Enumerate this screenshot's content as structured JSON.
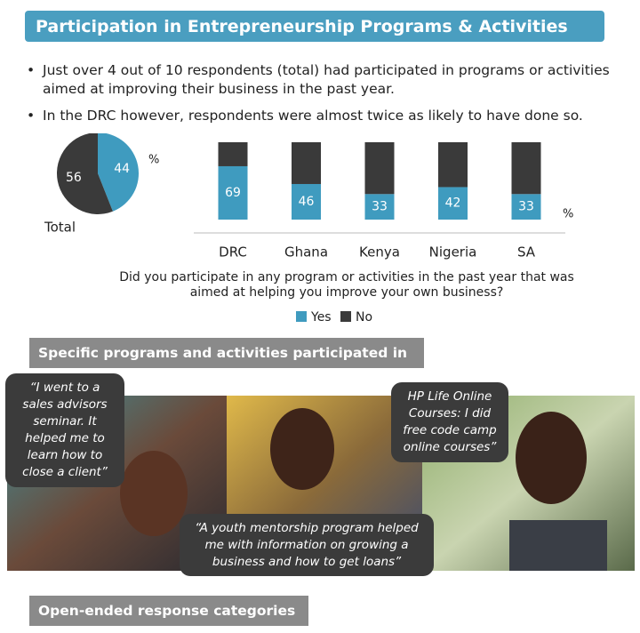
{
  "header": {
    "title": "Participation in Entrepreneurship Programs & Activities"
  },
  "bullets": [
    "Just over 4 out of 10 respondents (total) had participated in programs or activities aimed at improving their business in the past year.",
    "In the DRC however, respondents were almost twice as likely to have done so."
  ],
  "chart_data": [
    {
      "type": "pie",
      "label": "Total",
      "unit": "%",
      "categories": [
        "Yes",
        "No"
      ],
      "values": [
        44,
        56
      ],
      "colors": [
        "#3f9bbf",
        "#3a3a3a"
      ]
    },
    {
      "type": "bar",
      "stacked": true,
      "unit": "%",
      "categories": [
        "DRC",
        "Ghana",
        "Kenya",
        "Nigeria",
        "SA"
      ],
      "series": [
        {
          "name": "Yes",
          "color": "#3f9bbf",
          "values": [
            69,
            46,
            33,
            42,
            33
          ],
          "data_labels": true
        },
        {
          "name": "No",
          "color": "#3a3a3a",
          "values": [
            31,
            54,
            67,
            58,
            67
          ],
          "data_labels": false
        }
      ],
      "ylim": [
        0,
        100
      ],
      "xlabel": "Did you participate in any program or activities in the past year that was aimed at helping you improve your own business?",
      "legend": "bottom"
    }
  ],
  "sections": [
    "Specific programs and activities participated in",
    "Open-ended response categories"
  ],
  "quotes": [
    "“I went to a sales advisors seminar. It helped me to learn how to close a client”",
    "HP Life Online Courses: I did free code camp online courses”",
    "“A youth mentorship program helped me with information on growing a business and how to get loans”"
  ]
}
